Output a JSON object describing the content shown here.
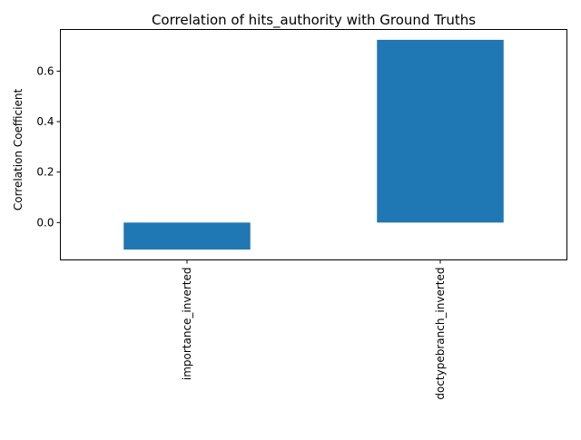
{
  "chart_data": {
    "type": "bar",
    "title": "Correlation of hits_authority with Ground Truths",
    "xlabel": "",
    "ylabel": "Correlation Coefficient",
    "categories": [
      "importance_inverted",
      "doctypebranch_inverted"
    ],
    "values": [
      -0.107,
      0.724
    ],
    "ylim": [
      -0.148,
      0.765
    ],
    "yticks": [
      0.0,
      0.2,
      0.4,
      0.6
    ],
    "ytick_labels": [
      "0.0",
      "0.2",
      "0.4",
      "0.6"
    ],
    "bar_color": "#1f77b4",
    "grid": false,
    "legend": "none"
  }
}
